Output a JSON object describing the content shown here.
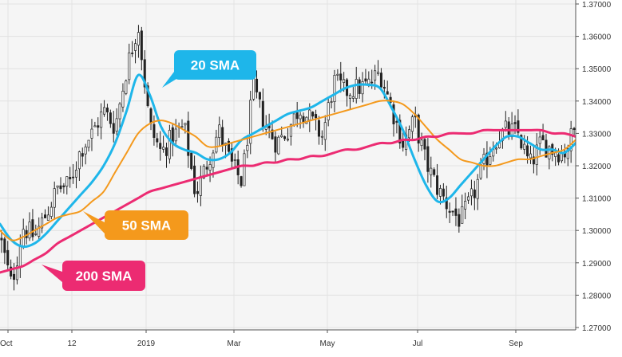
{
  "chart_data": {
    "type": "line",
    "title": "",
    "xlabel": "",
    "ylabel": "",
    "ylim": [
      1.27,
      1.37
    ],
    "y_ticks": [
      "1.27000",
      "1.28000",
      "1.29000",
      "1.30000",
      "1.31000",
      "1.32000",
      "1.33000",
      "1.34000",
      "1.35000",
      "1.36000",
      "1.37000"
    ],
    "x_ticks": [
      "Oct",
      "12",
      "2019",
      "Mar",
      "May",
      "Jul",
      "Sep"
    ],
    "grid": true,
    "background_color": "#f5f5f5",
    "callouts": [
      {
        "text": "20 SMA",
        "series": "20 SMA",
        "color": "#1eb6ea"
      },
      {
        "text": "50 SMA",
        "series": "50 SMA",
        "color": "#f4991c"
      },
      {
        "text": "200 SMA",
        "series": "200 SMA",
        "color": "#ec2b72"
      }
    ],
    "candles": {
      "x_range": [
        0,
        1
      ],
      "count": 185,
      "anchors_x": [
        0.0,
        0.02,
        0.04,
        0.06,
        0.08,
        0.1,
        0.12,
        0.14,
        0.16,
        0.18,
        0.2,
        0.22,
        0.24,
        0.26,
        0.28,
        0.3,
        0.32,
        0.34,
        0.36,
        0.38,
        0.4,
        0.42,
        0.44,
        0.46,
        0.48,
        0.5,
        0.52,
        0.54,
        0.56,
        0.58,
        0.6,
        0.62,
        0.64,
        0.66,
        0.68,
        0.7,
        0.72,
        0.74,
        0.76,
        0.78,
        0.8,
        0.82,
        0.84,
        0.86,
        0.88,
        0.9,
        0.92,
        0.94,
        0.96,
        0.98,
        1.0
      ],
      "anchors_close": [
        1.298,
        1.283,
        1.301,
        1.298,
        1.305,
        1.313,
        1.314,
        1.325,
        1.33,
        1.337,
        1.332,
        1.35,
        1.364,
        1.332,
        1.324,
        1.329,
        1.332,
        1.311,
        1.321,
        1.331,
        1.321,
        1.315,
        1.344,
        1.333,
        1.327,
        1.331,
        1.338,
        1.334,
        1.329,
        1.346,
        1.343,
        1.344,
        1.345,
        1.349,
        1.338,
        1.327,
        1.334,
        1.321,
        1.313,
        1.307,
        1.303,
        1.31,
        1.32,
        1.328,
        1.331,
        1.33,
        1.32,
        1.327,
        1.325,
        1.324,
        1.332
      ]
    },
    "series": [
      {
        "name": "20 SMA",
        "color": "#1eb6ea",
        "x": [
          0.0,
          0.02,
          0.04,
          0.06,
          0.08,
          0.1,
          0.12,
          0.14,
          0.16,
          0.18,
          0.2,
          0.22,
          0.24,
          0.26,
          0.28,
          0.3,
          0.32,
          0.34,
          0.36,
          0.38,
          0.4,
          0.42,
          0.44,
          0.46,
          0.48,
          0.5,
          0.52,
          0.54,
          0.56,
          0.58,
          0.6,
          0.62,
          0.64,
          0.66,
          0.68,
          0.7,
          0.72,
          0.74,
          0.76,
          0.78,
          0.8,
          0.82,
          0.84,
          0.86,
          0.88,
          0.9,
          0.92,
          0.94,
          0.96,
          0.98,
          1.0
        ],
        "values": [
          1.302,
          1.297,
          1.295,
          1.296,
          1.299,
          1.303,
          1.307,
          1.311,
          1.315,
          1.32,
          1.327,
          1.337,
          1.348,
          1.342,
          1.332,
          1.327,
          1.325,
          1.324,
          1.322,
          1.322,
          1.324,
          1.328,
          1.33,
          1.332,
          1.334,
          1.336,
          1.337,
          1.338,
          1.34,
          1.342,
          1.344,
          1.345,
          1.345,
          1.344,
          1.338,
          1.331,
          1.322,
          1.314,
          1.309,
          1.31,
          1.314,
          1.318,
          1.322,
          1.326,
          1.329,
          1.329,
          1.327,
          1.325,
          1.325,
          1.324,
          1.327
        ]
      },
      {
        "name": "50 SMA",
        "color": "#f4991c",
        "x": [
          0.0,
          0.02,
          0.04,
          0.06,
          0.08,
          0.1,
          0.12,
          0.14,
          0.16,
          0.18,
          0.2,
          0.22,
          0.24,
          0.26,
          0.28,
          0.3,
          0.32,
          0.34,
          0.36,
          0.38,
          0.4,
          0.42,
          0.44,
          0.46,
          0.48,
          0.5,
          0.52,
          0.54,
          0.56,
          0.58,
          0.6,
          0.62,
          0.64,
          0.66,
          0.68,
          0.7,
          0.72,
          0.74,
          0.76,
          0.78,
          0.8,
          0.82,
          0.84,
          0.86,
          0.88,
          0.9,
          0.92,
          0.94,
          0.96,
          0.98,
          1.0
        ],
        "values": [
          1.3,
          1.297,
          1.298,
          1.3,
          1.302,
          1.304,
          1.305,
          1.306,
          1.309,
          1.312,
          1.318,
          1.324,
          1.33,
          1.333,
          1.334,
          1.333,
          1.331,
          1.329,
          1.326,
          1.326,
          1.327,
          1.328,
          1.329,
          1.33,
          1.331,
          1.332,
          1.333,
          1.334,
          1.335,
          1.336,
          1.337,
          1.338,
          1.339,
          1.34,
          1.34,
          1.339,
          1.336,
          1.332,
          1.328,
          1.325,
          1.322,
          1.321,
          1.32,
          1.32,
          1.321,
          1.322,
          1.322,
          1.323,
          1.324,
          1.325,
          1.328
        ]
      },
      {
        "name": "200 SMA",
        "color": "#ec2b72",
        "x": [
          0.0,
          0.02,
          0.04,
          0.06,
          0.08,
          0.1,
          0.12,
          0.14,
          0.16,
          0.18,
          0.2,
          0.22,
          0.24,
          0.26,
          0.28,
          0.3,
          0.32,
          0.34,
          0.36,
          0.38,
          0.4,
          0.42,
          0.44,
          0.46,
          0.48,
          0.5,
          0.52,
          0.54,
          0.56,
          0.58,
          0.6,
          0.62,
          0.64,
          0.66,
          0.68,
          0.7,
          0.72,
          0.74,
          0.76,
          0.78,
          0.8,
          0.82,
          0.84,
          0.86,
          0.88,
          0.9,
          0.92,
          0.94,
          0.96,
          0.98,
          1.0
        ],
        "values": [
          1.287,
          1.288,
          1.289,
          1.291,
          1.293,
          1.296,
          1.298,
          1.3,
          1.302,
          1.304,
          1.306,
          1.308,
          1.31,
          1.312,
          1.313,
          1.314,
          1.315,
          1.316,
          1.317,
          1.318,
          1.319,
          1.32,
          1.32,
          1.321,
          1.321,
          1.322,
          1.322,
          1.323,
          1.323,
          1.324,
          1.325,
          1.325,
          1.326,
          1.327,
          1.327,
          1.328,
          1.328,
          1.329,
          1.329,
          1.33,
          1.33,
          1.33,
          1.331,
          1.331,
          1.331,
          1.331,
          1.331,
          1.331,
          1.33,
          1.33,
          1.329
        ]
      }
    ]
  }
}
